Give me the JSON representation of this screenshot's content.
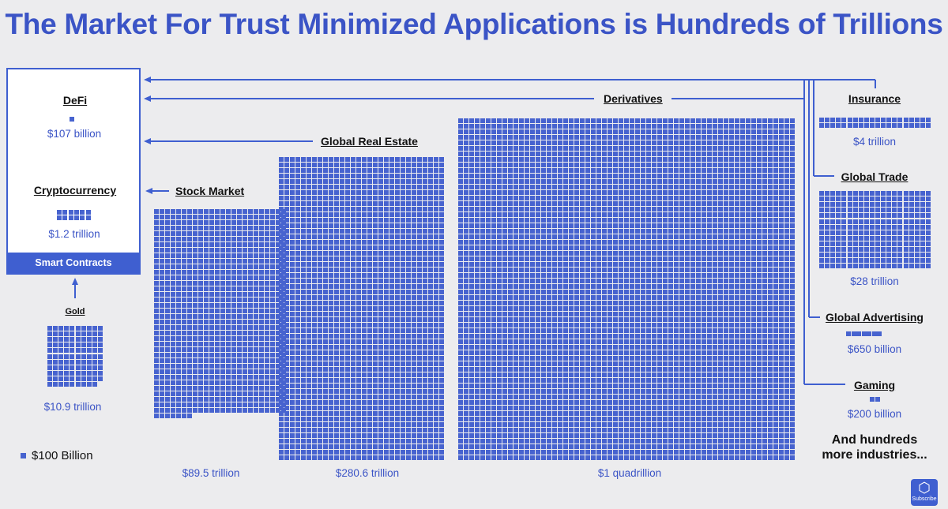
{
  "title": "The Market For Trust Minimized Applications is Hundreds of Trillions",
  "legend": {
    "unit_label": "$100 Billion"
  },
  "box": {
    "footer": "Smart Contracts"
  },
  "more_text_1": "And hundreds",
  "more_text_2": "more industries...",
  "subscribe": {
    "label": "Subscribe",
    "icon": "chainlink-hexagon-icon"
  },
  "colors": {
    "accent": "#3b54c6",
    "square": "#4763cf",
    "background": "#ececee"
  },
  "chart_data": {
    "type": "waffle",
    "unit": "$100 Billion per square",
    "categories": [
      {
        "name": "DeFi",
        "value_label": "$107 billion",
        "value_billions": 107
      },
      {
        "name": "Cryptocurrency",
        "value_label": "$1.2 trillion",
        "value_billions": 1200
      },
      {
        "name": "Gold",
        "value_label": "$10.9 trillion",
        "value_billions": 10900
      },
      {
        "name": "Stock Market",
        "value_label": "$89.5 trillion",
        "value_billions": 89500
      },
      {
        "name": "Global Real Estate",
        "value_label": "$280.6 trillion",
        "value_billions": 280600
      },
      {
        "name": "Derivatives",
        "value_label": "$1 quadrillion",
        "value_billions": 1000000
      },
      {
        "name": "Insurance",
        "value_label": "$4 trillion",
        "value_billions": 4000
      },
      {
        "name": "Global Trade",
        "value_label": "$28 trillion",
        "value_billions": 28000
      },
      {
        "name": "Global Advertising",
        "value_label": "$650 billion",
        "value_billions": 650
      },
      {
        "name": "Gaming",
        "value_label": "$200 billion",
        "value_billions": 200
      }
    ]
  }
}
